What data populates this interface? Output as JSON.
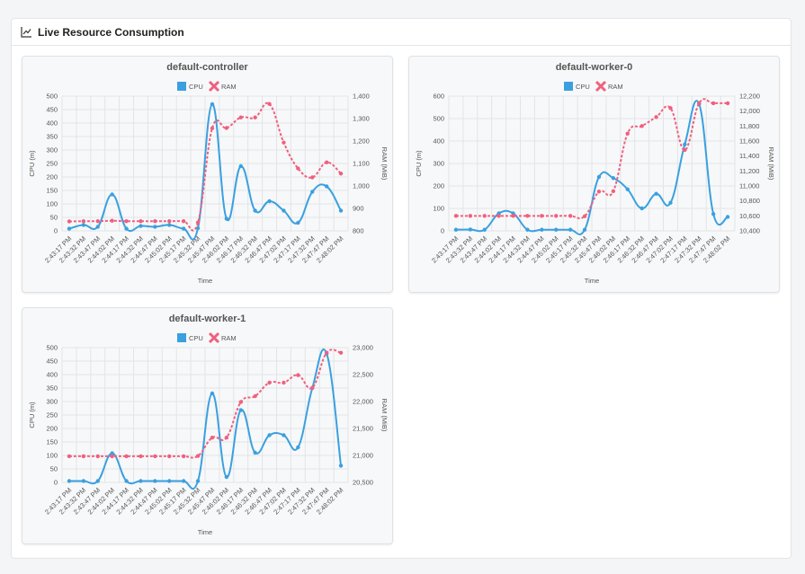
{
  "panel": {
    "title": "Live Resource Consumption",
    "icon": "line-chart-icon"
  },
  "legend": {
    "cpu": "CPU",
    "ram": "RAM"
  },
  "colors": {
    "cpu": "#3aa0e0",
    "ram": "#f0607e"
  },
  "chart_data": [
    {
      "type": "line",
      "title": "default-controller",
      "xlabel": "Time",
      "ylabel_left": "CPU (m)",
      "ylabel_right": "RAM (MiB)",
      "x": [
        "2:43:17 PM",
        "2:43:32 PM",
        "2:43:47 PM",
        "2:44:02 PM",
        "2:44:17 PM",
        "2:44:32 PM",
        "2:44:47 PM",
        "2:45:02 PM",
        "2:45:17 PM",
        "2:45:32 PM",
        "2:45:47 PM",
        "2:46:02 PM",
        "2:46:17 PM",
        "2:46:32 PM",
        "2:46:47 PM",
        "2:47:02 PM",
        "2:47:17 PM",
        "2:47:32 PM",
        "2:47:47 PM",
        "2:48:02 PM"
      ],
      "left_ticks": [
        "0",
        "50",
        "100",
        "150",
        "200",
        "250",
        "300",
        "350",
        "400",
        "450",
        "500"
      ],
      "right_ticks": [
        "800",
        "900",
        "1,000",
        "1,100",
        "1,200",
        "1,300",
        "1,400"
      ],
      "ylim_left": [
        0,
        500
      ],
      "ylim_right": [
        800,
        1400
      ],
      "series": [
        {
          "name": "CPU",
          "axis": "left",
          "values": [
            8,
            22,
            15,
            135,
            8,
            18,
            15,
            22,
            8,
            10,
            470,
            45,
            240,
            75,
            110,
            75,
            30,
            145,
            165,
            75
          ]
        },
        {
          "name": "RAM",
          "axis": "right",
          "values": [
            842,
            843,
            843,
            845,
            843,
            843,
            843,
            843,
            843,
            837,
            1257,
            1258,
            1305,
            1305,
            1365,
            1193,
            1078,
            1038,
            1105,
            1055
          ]
        }
      ]
    },
    {
      "type": "line",
      "title": "default-worker-0",
      "xlabel": "Time",
      "ylabel_left": "CPU (m)",
      "ylabel_right": "RAM (MiB)",
      "x": [
        "2:43:17 PM",
        "2:43:32 PM",
        "2:43:47 PM",
        "2:44:02 PM",
        "2:44:17 PM",
        "2:44:32 PM",
        "2:44:47 PM",
        "2:45:02 PM",
        "2:45:17 PM",
        "2:45:32 PM",
        "2:45:47 PM",
        "2:46:02 PM",
        "2:46:17 PM",
        "2:46:32 PM",
        "2:46:47 PM",
        "2:47:02 PM",
        "2:47:17 PM",
        "2:47:32 PM",
        "2:47:47 PM",
        "2:48:02 PM"
      ],
      "left_ticks": [
        "0",
        "100",
        "200",
        "300",
        "400",
        "500",
        "600"
      ],
      "right_ticks": [
        "10,400",
        "10,600",
        "10,800",
        "11,000",
        "11,200",
        "11,400",
        "11,600",
        "11,800",
        "12,000",
        "12,200"
      ],
      "ylim_left": [
        0,
        600
      ],
      "ylim_right": [
        10400,
        12200
      ],
      "series": [
        {
          "name": "CPU",
          "axis": "left",
          "values": [
            5,
            6,
            5,
            78,
            78,
            5,
            5,
            5,
            5,
            5,
            240,
            235,
            185,
            100,
            165,
            125,
            385,
            565,
            75,
            62
          ]
        },
        {
          "name": "RAM",
          "axis": "right",
          "values": [
            10600,
            10600,
            10600,
            10600,
            10600,
            10600,
            10600,
            10600,
            10600,
            10595,
            10925,
            10930,
            11700,
            11800,
            11920,
            12040,
            11480,
            12105,
            12105,
            12105
          ]
        }
      ]
    },
    {
      "type": "line",
      "title": "default-worker-1",
      "xlabel": "Time",
      "ylabel_left": "CPU (m)",
      "ylabel_right": "RAM (MiB)",
      "x": [
        "2:43:17 PM",
        "2:43:32 PM",
        "2:43:47 PM",
        "2:44:02 PM",
        "2:44:17 PM",
        "2:44:32 PM",
        "2:44:47 PM",
        "2:45:02 PM",
        "2:45:17 PM",
        "2:45:32 PM",
        "2:45:47 PM",
        "2:46:02 PM",
        "2:46:17 PM",
        "2:46:32 PM",
        "2:46:47 PM",
        "2:47:02 PM",
        "2:47:17 PM",
        "2:47:32 PM",
        "2:47:47 PM",
        "2:48:02 PM"
      ],
      "left_ticks": [
        "0",
        "50",
        "100",
        "150",
        "200",
        "250",
        "300",
        "350",
        "400",
        "450",
        "500"
      ],
      "right_ticks": [
        "20,500",
        "21,000",
        "21,500",
        "22,000",
        "22,500",
        "23,000"
      ],
      "ylim_left": [
        0,
        500
      ],
      "ylim_right": [
        20500,
        23000
      ],
      "series": [
        {
          "name": "CPU",
          "axis": "left",
          "values": [
            5,
            5,
            5,
            108,
            5,
            5,
            5,
            5,
            5,
            5,
            330,
            20,
            268,
            110,
            175,
            175,
            130,
            350,
            478,
            62
          ]
        },
        {
          "name": "RAM",
          "axis": "right",
          "values": [
            20985,
            20985,
            20985,
            20985,
            20985,
            20985,
            20985,
            20985,
            20985,
            20990,
            21330,
            21330,
            21990,
            22100,
            22350,
            22350,
            22490,
            22255,
            22905,
            22905
          ]
        }
      ]
    }
  ]
}
